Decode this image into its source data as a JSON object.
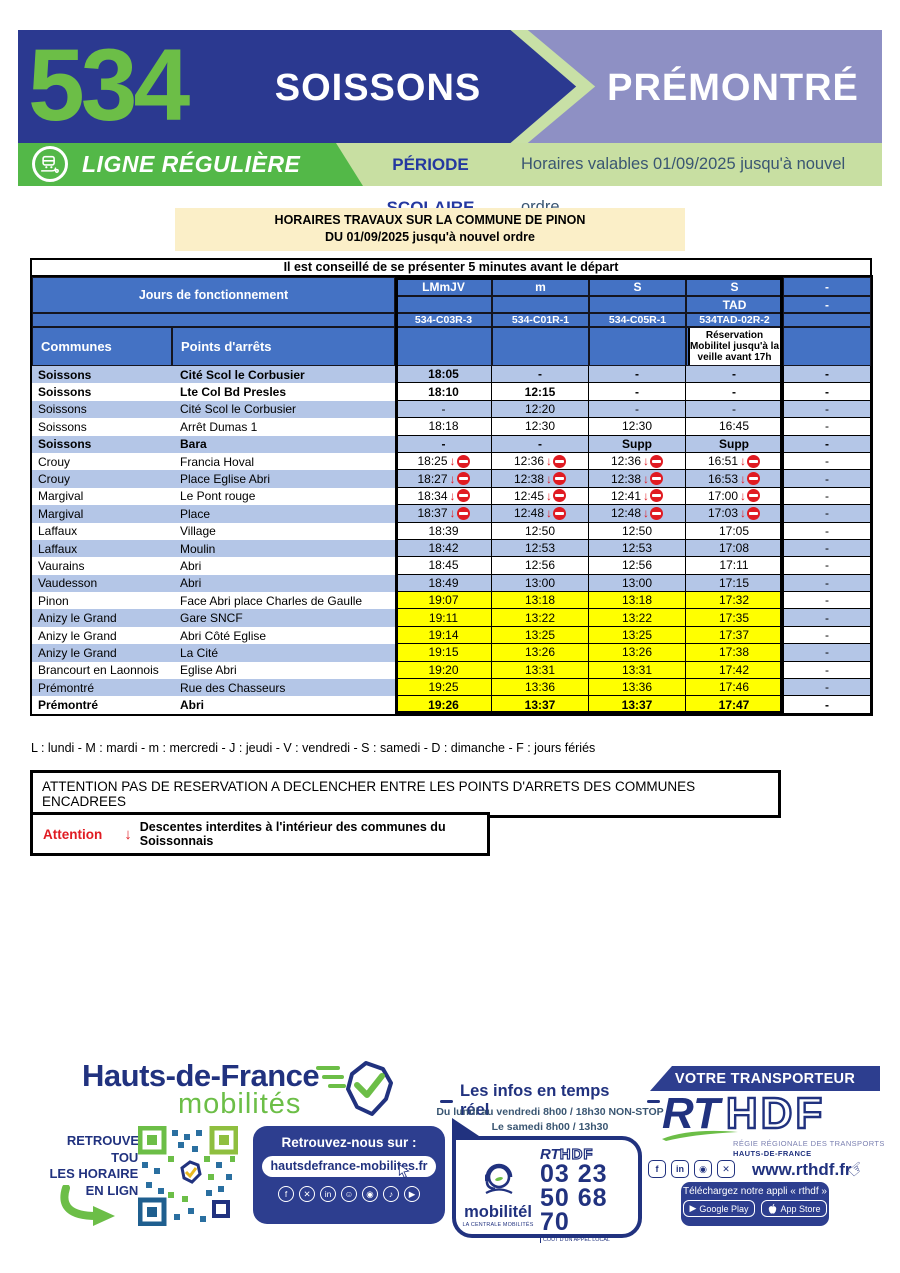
{
  "colors": {
    "navy": "#2B3990",
    "purple": "#8E90C4",
    "chevron_outline": "#C8E0A6",
    "bright_green": "#53B848",
    "light_green": "#C8DFA2",
    "route_green": "#6CBE47",
    "header_blue": "#4472C4",
    "row_blue": "#B4C6E7",
    "highlight_yellow": "#FFFF00",
    "alert_red": "#E01B22",
    "cream": "#FBEFC8",
    "footer_navy": "#2D3E8F"
  },
  "banner": {
    "route": "534",
    "origin": "SOISSONS",
    "destination": "PRÉMONTRÉ",
    "line_type": "LIGNE RÉGULIÈRE",
    "period": "PÉRIODE SCOLAIRE",
    "validity": "Horaires valables 01/09/2025 jusqu'à nouvel ordre"
  },
  "notice": {
    "line1": "HORAIRES TRAVAUX SUR LA COMMUNE DE PINON",
    "line2": "DU 01/09/2025 jusqu'à nouvel ordre"
  },
  "advice": "Il est conseillé de se présenter 5 minutes avant le départ",
  "table": {
    "days_label": "Jours de fonctionnement",
    "days": [
      "LMmJV",
      "m",
      "S",
      "S",
      "-"
    ],
    "tad_label": "TAD",
    "dash": "-",
    "codes": [
      "534-C03R-3",
      "534-C01R-1",
      "534-C05R-1",
      "534TAD-02R-2"
    ],
    "communes_label": "Communes",
    "stops_label": "Points d'arrêts",
    "reservation_note": "Réservation Mobilitel jusqu'à la veille avant 17h",
    "rows": [
      {
        "commune": "Soissons",
        "stop": "Cité Scol le Corbusier",
        "times": [
          "18:05",
          "-",
          "-",
          "-",
          "-"
        ],
        "bold": true,
        "yellow": false,
        "noentry": false
      },
      {
        "commune": "Soissons",
        "stop": "Lte Col Bd Presles",
        "times": [
          "18:10",
          "12:15",
          "-",
          "-",
          "-"
        ],
        "bold": true,
        "yellow": false,
        "noentry": false
      },
      {
        "commune": "Soissons",
        "stop": "Cité Scol le Corbusier",
        "times": [
          "-",
          "12:20",
          "-",
          "-",
          "-"
        ],
        "bold": false,
        "yellow": false,
        "noentry": false
      },
      {
        "commune": "Soissons",
        "stop": "Arrêt Dumas 1",
        "times": [
          "18:18",
          "12:30",
          "12:30",
          "16:45",
          "-"
        ],
        "bold": false,
        "yellow": false,
        "noentry": false
      },
      {
        "commune": "Soissons",
        "stop": "Bara",
        "times": [
          "-",
          "-",
          "Supp",
          "Supp",
          "-"
        ],
        "bold": true,
        "yellow": false,
        "noentry": false
      },
      {
        "commune": "Crouy",
        "stop": "Francia Hoval",
        "times": [
          "18:25",
          "12:36",
          "12:36",
          "16:51",
          "-"
        ],
        "bold": false,
        "yellow": false,
        "noentry": true
      },
      {
        "commune": "Crouy",
        "stop": "Place Eglise Abri",
        "times": [
          "18:27",
          "12:38",
          "12:38",
          "16:53",
          "-"
        ],
        "bold": false,
        "yellow": false,
        "noentry": true
      },
      {
        "commune": "Margival",
        "stop": "Le Pont rouge",
        "times": [
          "18:34",
          "12:45",
          "12:41",
          "17:00",
          "-"
        ],
        "bold": false,
        "yellow": false,
        "noentry": true
      },
      {
        "commune": "Margival",
        "stop": "Place",
        "times": [
          "18:37",
          "12:48",
          "12:48",
          "17:03",
          "-"
        ],
        "bold": false,
        "yellow": false,
        "noentry": true
      },
      {
        "commune": "Laffaux",
        "stop": "Village",
        "times": [
          "18:39",
          "12:50",
          "12:50",
          "17:05",
          "-"
        ],
        "bold": false,
        "yellow": false,
        "noentry": false
      },
      {
        "commune": "Laffaux",
        "stop": "Moulin",
        "times": [
          "18:42",
          "12:53",
          "12:53",
          "17:08",
          "-"
        ],
        "bold": false,
        "yellow": false,
        "noentry": false
      },
      {
        "commune": "Vaurains",
        "stop": "Abri",
        "times": [
          "18:45",
          "12:56",
          "12:56",
          "17:11",
          "-"
        ],
        "bold": false,
        "yellow": false,
        "noentry": false
      },
      {
        "commune": "Vaudesson",
        "stop": "Abri",
        "times": [
          "18:49",
          "13:00",
          "13:00",
          "17:15",
          "-"
        ],
        "bold": false,
        "yellow": false,
        "noentry": false
      },
      {
        "commune": "Pinon",
        "stop": "Face Abri place Charles de Gaulle",
        "times": [
          "19:07",
          "13:18",
          "13:18",
          "17:32",
          "-"
        ],
        "bold": false,
        "yellow": true,
        "noentry": false
      },
      {
        "commune": "Anizy le Grand",
        "stop": "Gare SNCF",
        "times": [
          "19:11",
          "13:22",
          "13:22",
          "17:35",
          "-"
        ],
        "bold": false,
        "yellow": true,
        "noentry": false
      },
      {
        "commune": "Anizy le Grand",
        "stop": "Abri Côté Eglise",
        "times": [
          "19:14",
          "13:25",
          "13:25",
          "17:37",
          "-"
        ],
        "bold": false,
        "yellow": true,
        "noentry": false
      },
      {
        "commune": "Anizy le Grand",
        "stop": "La Cité",
        "times": [
          "19:15",
          "13:26",
          "13:26",
          "17:38",
          "-"
        ],
        "bold": false,
        "yellow": true,
        "noentry": false
      },
      {
        "commune": "Brancourt en Laonnois",
        "stop": "Eglise Abri",
        "times": [
          "19:20",
          "13:31",
          "13:31",
          "17:42",
          "-"
        ],
        "bold": false,
        "yellow": true,
        "noentry": false
      },
      {
        "commune": "Prémontré",
        "stop": "Rue des Chasseurs",
        "times": [
          "19:25",
          "13:36",
          "13:36",
          "17:46",
          "-"
        ],
        "bold": false,
        "yellow": true,
        "noentry": false
      },
      {
        "commune": "Prémontré",
        "stop": "Abri",
        "times": [
          "19:26",
          "13:37",
          "13:37",
          "17:47",
          "-"
        ],
        "bold": true,
        "yellow": true,
        "noentry": false
      }
    ]
  },
  "legend": "L : lundi - M : mardi - m : mercredi - J : jeudi - V : vendredi - S : samedi - D : dimanche - F : jours fériés",
  "warning_reservation": "ATTENTION PAS DE RESERVATION A DECLENCHER ENTRE LES POINTS D'ARRETS DES COMMUNES ENCADREES",
  "warning_descentes": {
    "label": "Attention",
    "arrow": "↓",
    "text": "Descentes interdites à l'intérieur des communes du Soissonnais"
  },
  "footer": {
    "hdf": {
      "brand_line1": "Hauts-de-France",
      "brand_line2": "mobilités",
      "find_lines": [
        "RETROUVEZ",
        "TOUS",
        "LES HORAIRES",
        "EN LIGNE"
      ],
      "social_title": "Retrouvez-nous sur :",
      "website": "hautsdefrance-mobilites.fr",
      "social_icons": [
        {
          "name": "facebook-icon",
          "glyph": "f"
        },
        {
          "name": "x-icon",
          "glyph": "✕"
        },
        {
          "name": "linkedin-icon",
          "glyph": "in"
        },
        {
          "name": "snapchat-icon",
          "glyph": "☺"
        },
        {
          "name": "instagram-icon",
          "glyph": "◉"
        },
        {
          "name": "tiktok-icon",
          "glyph": "♪"
        },
        {
          "name": "youtube-icon",
          "glyph": "▶"
        }
      ]
    },
    "infos": {
      "title": "Les infos en temps réel",
      "schedule_line1": "Du lundi au vendredi 8h00 / 18h30 NON-STOP",
      "schedule_line2": "Le samedi 8h00 / 13h30",
      "brand": "mobilitél",
      "brand_sub": "LA CENTRALE MOBILITÉS",
      "rt": "RT",
      "hdf": "HDF",
      "phone_line1": "03 23",
      "phone_line2": "50 68 70",
      "cost_note": "COÛT D'UN APPEL LOCAL"
    },
    "transporter": {
      "banner": "VOTRE TRANSPORTEUR",
      "rt": "RT",
      "hdf": "HDF",
      "sub1": "RÉGIE RÉGIONALE DES TRANSPORTS",
      "sub2": "HAUTS-DE-FRANCE",
      "website": "www.rthdf.fr",
      "app_text": "Téléchargez notre appli « rthdf »",
      "google_play": "Google Play",
      "app_store": "App Store",
      "play_glyph": "▶",
      "social_icons": [
        {
          "name": "facebook-icon",
          "glyph": "f"
        },
        {
          "name": "linkedin-icon",
          "glyph": "in"
        },
        {
          "name": "instagram-icon",
          "glyph": "◉"
        },
        {
          "name": "x-icon",
          "glyph": "✕"
        }
      ]
    }
  }
}
